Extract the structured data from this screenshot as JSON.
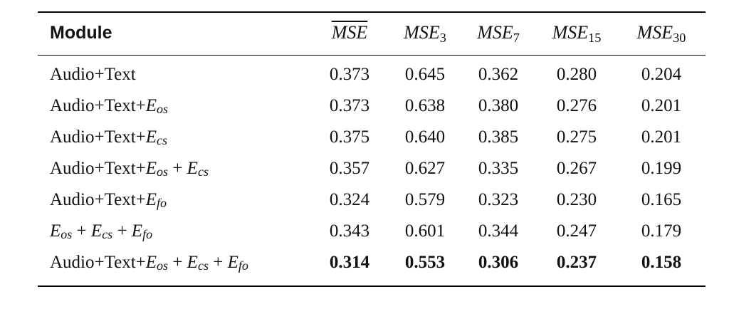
{
  "table": {
    "columns": [
      {
        "label": "Module"
      },
      {
        "base": "MSE",
        "sub": "",
        "overline": true
      },
      {
        "base": "MSE",
        "sub": "3",
        "overline": false
      },
      {
        "base": "MSE",
        "sub": "7",
        "overline": false
      },
      {
        "base": "MSE",
        "sub": "15",
        "overline": false
      },
      {
        "base": "MSE",
        "sub": "30",
        "overline": false
      }
    ],
    "rows": [
      {
        "module": {
          "prefix": "Audio+Text",
          "t1": "",
          "t1s": "",
          "p1": "",
          "t2": "",
          "t2s": "",
          "p2": "",
          "t3": "",
          "t3s": ""
        },
        "values": [
          "0.373",
          "0.645",
          "0.362",
          "0.280",
          "0.204"
        ],
        "bold": false
      },
      {
        "module": {
          "prefix": "Audio+Text+",
          "t1": "E",
          "t1s": "os",
          "p1": "",
          "t2": "",
          "t2s": "",
          "p2": "",
          "t3": "",
          "t3s": ""
        },
        "values": [
          "0.373",
          "0.638",
          "0.380",
          "0.276",
          "0.201"
        ],
        "bold": false
      },
      {
        "module": {
          "prefix": "Audio+Text+",
          "t1": "E",
          "t1s": "cs",
          "p1": "",
          "t2": "",
          "t2s": "",
          "p2": "",
          "t3": "",
          "t3s": ""
        },
        "values": [
          "0.375",
          "0.640",
          "0.385",
          "0.275",
          "0.201"
        ],
        "bold": false
      },
      {
        "module": {
          "prefix": "Audio+Text+",
          "t1": "E",
          "t1s": "os",
          "p1": " + ",
          "t2": "E",
          "t2s": "cs",
          "p2": "",
          "t3": "",
          "t3s": ""
        },
        "values": [
          "0.357",
          "0.627",
          "0.335",
          "0.267",
          "0.199"
        ],
        "bold": false
      },
      {
        "module": {
          "prefix": "Audio+Text+",
          "t1": "E",
          "t1s": "fo",
          "p1": "",
          "t2": "",
          "t2s": "",
          "p2": "",
          "t3": "",
          "t3s": ""
        },
        "values": [
          "0.324",
          "0.579",
          "0.323",
          "0.230",
          "0.165"
        ],
        "bold": false
      },
      {
        "module": {
          "prefix": "",
          "t1": "E",
          "t1s": "os",
          "p1": " + ",
          "t2": "E",
          "t2s": "cs",
          "p2": " + ",
          "t3": "E",
          "t3s": "fo"
        },
        "values": [
          "0.343",
          "0.601",
          "0.344",
          "0.247",
          "0.179"
        ],
        "bold": false
      },
      {
        "module": {
          "prefix": "Audio+Text+",
          "t1": "E",
          "t1s": "os",
          "p1": " + ",
          "t2": "E",
          "t2s": "cs",
          "p2": " + ",
          "t3": "E",
          "t3s": "fo"
        },
        "values": [
          "0.314",
          "0.553",
          "0.306",
          "0.237",
          "0.158"
        ],
        "bold": true
      }
    ]
  }
}
